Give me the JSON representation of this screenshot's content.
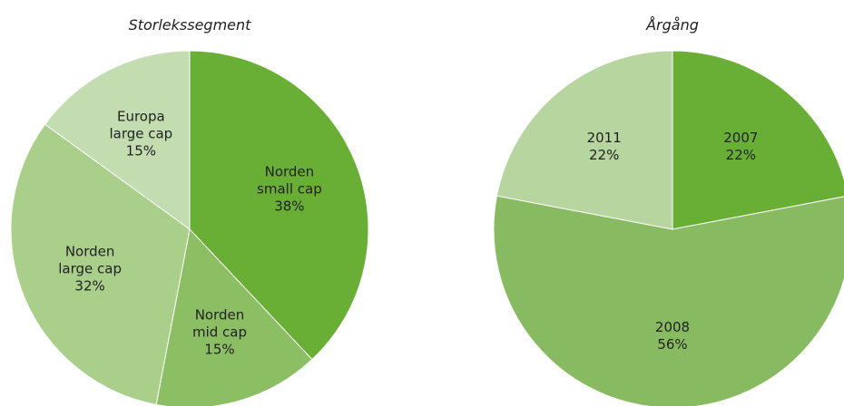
{
  "chart_data": [
    {
      "type": "pie",
      "title": "Storlekssegment",
      "categories": [
        "Norden small cap",
        "Norden mid cap",
        "Norden large cap",
        "Europa large cap"
      ],
      "values": [
        38,
        15,
        32,
        15
      ],
      "value_labels": [
        "38%",
        "15%",
        "32%",
        "15%"
      ],
      "colors": [
        "#6aaf35",
        "#8cbf63",
        "#a9cf8a",
        "#c3ddb0"
      ]
    },
    {
      "type": "pie",
      "title": "Årgång",
      "categories": [
        "2007",
        "2008",
        "2011"
      ],
      "values": [
        22,
        56,
        22
      ],
      "value_labels": [
        "22%",
        "56%",
        "22%"
      ],
      "colors": [
        "#6aaf35",
        "#88bb61",
        "#b7d59e"
      ]
    }
  ]
}
